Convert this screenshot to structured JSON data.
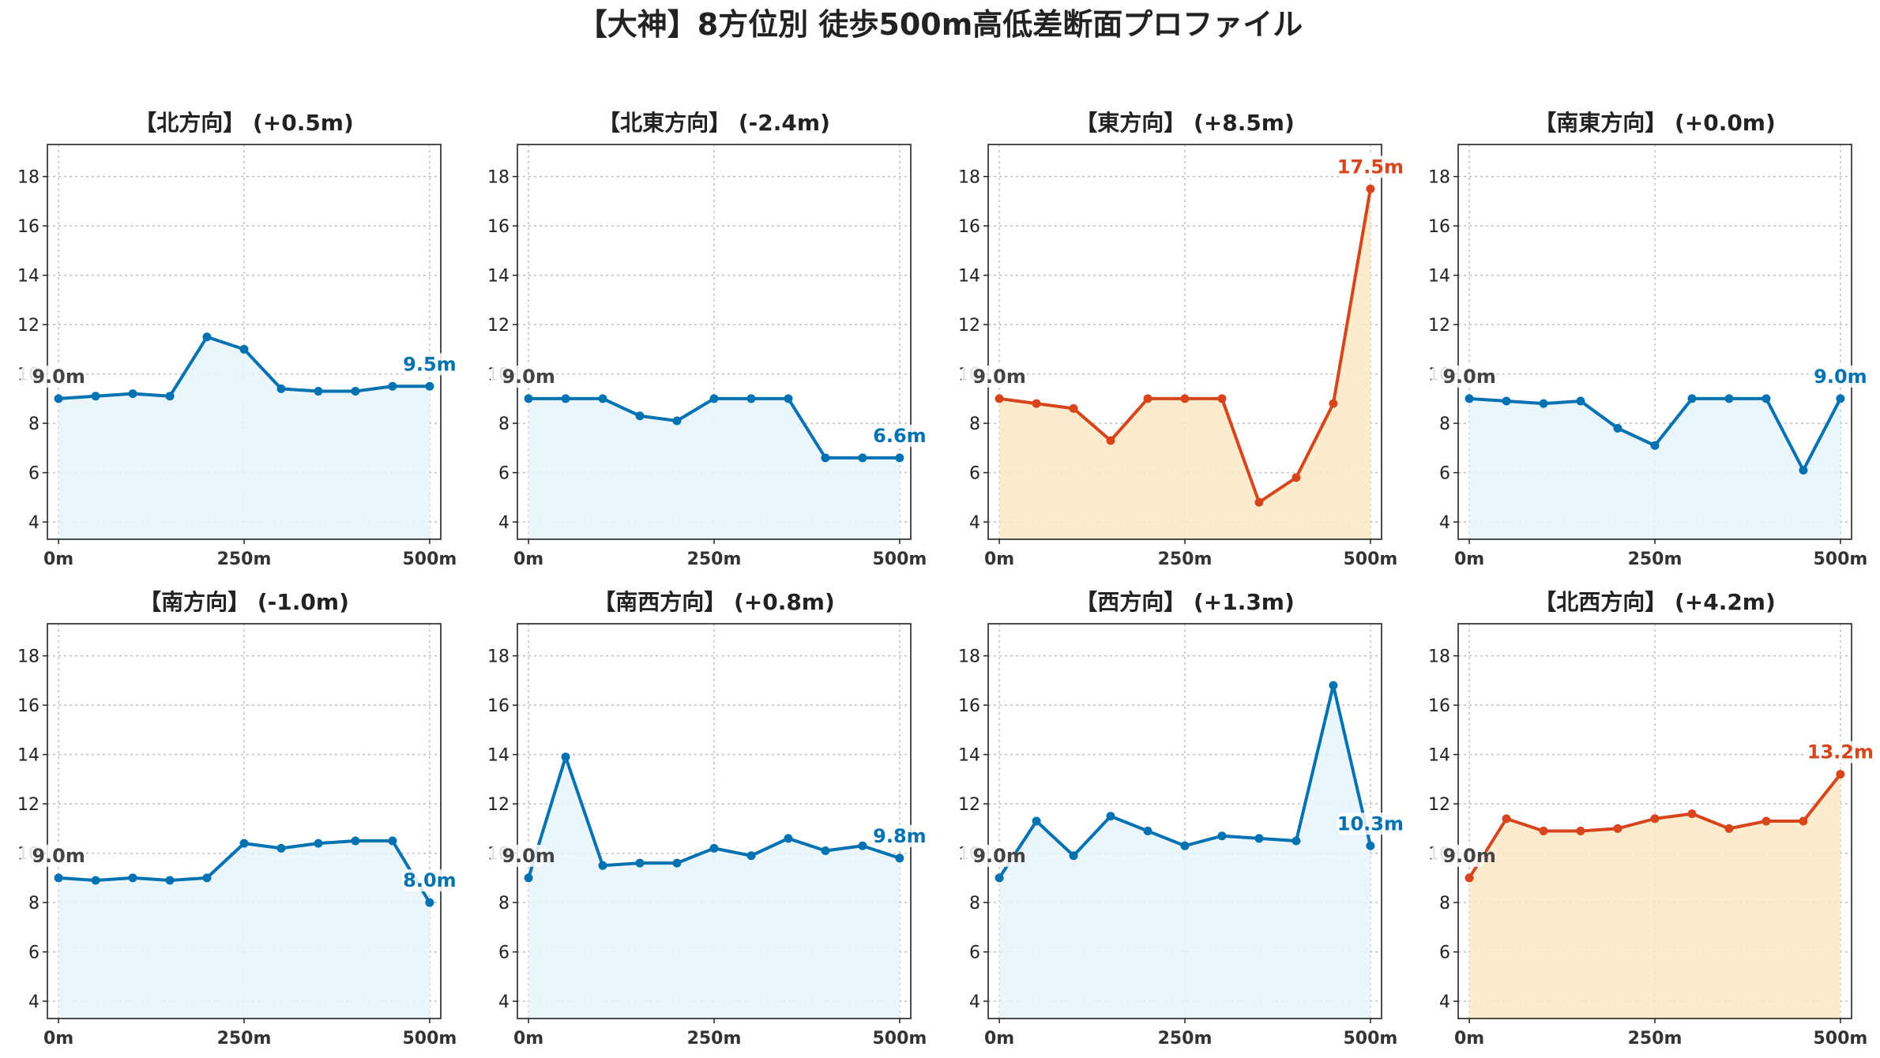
{
  "title": "【大神】8方位別 徒歩500m高低差断面プロファイル",
  "colors": {
    "flat_line": "#0072b2",
    "flat_fill": "#e6f4fb",
    "rise_line": "#d8441c",
    "rise_fill": "#fde8c6",
    "start_label": "#444444"
  },
  "chart_data": [
    {
      "type": "line",
      "title": "【北方向】 (+0.5m)",
      "x": [
        0,
        50,
        100,
        150,
        200,
        250,
        300,
        350,
        400,
        450,
        500
      ],
      "y": [
        9.0,
        9.1,
        9.2,
        9.1,
        11.5,
        11.0,
        9.4,
        9.3,
        9.3,
        9.5,
        9.5
      ],
      "x_tick_labels": [
        "0m",
        "250m",
        "500m"
      ],
      "y_ticks": [
        4,
        6,
        8,
        10,
        12,
        14,
        16,
        18
      ],
      "ylim": [
        3.3,
        19.3
      ],
      "xlim": [
        -15,
        515
      ],
      "start_label": "9.0m",
      "end_label": "9.5m",
      "style": "flat",
      "grid": true
    },
    {
      "type": "line",
      "title": "【北東方向】 (-2.4m)",
      "x": [
        0,
        50,
        100,
        150,
        200,
        250,
        300,
        350,
        400,
        450,
        500
      ],
      "y": [
        9.0,
        9.0,
        9.0,
        8.3,
        8.1,
        9.0,
        9.0,
        9.0,
        6.6,
        6.6,
        6.6
      ],
      "x_tick_labels": [
        "0m",
        "250m",
        "500m"
      ],
      "y_ticks": [
        4,
        6,
        8,
        10,
        12,
        14,
        16,
        18
      ],
      "ylim": [
        3.3,
        19.3
      ],
      "xlim": [
        -15,
        515
      ],
      "start_label": "9.0m",
      "end_label": "6.6m",
      "style": "flat",
      "grid": true
    },
    {
      "type": "line",
      "title": "【東方向】 (+8.5m)",
      "x": [
        0,
        50,
        100,
        150,
        200,
        250,
        300,
        350,
        400,
        450,
        500
      ],
      "y": [
        9.0,
        8.8,
        8.6,
        7.3,
        9.0,
        9.0,
        9.0,
        4.8,
        5.8,
        8.8,
        17.5
      ],
      "x_tick_labels": [
        "0m",
        "250m",
        "500m"
      ],
      "y_ticks": [
        4,
        6,
        8,
        10,
        12,
        14,
        16,
        18
      ],
      "ylim": [
        3.3,
        19.3
      ],
      "xlim": [
        -15,
        515
      ],
      "start_label": "9.0m",
      "end_label": "17.5m",
      "style": "rise",
      "grid": true
    },
    {
      "type": "line",
      "title": "【南東方向】 (+0.0m)",
      "x": [
        0,
        50,
        100,
        150,
        200,
        250,
        300,
        350,
        400,
        450,
        500
      ],
      "y": [
        9.0,
        8.9,
        8.8,
        8.9,
        7.8,
        7.1,
        9.0,
        9.0,
        9.0,
        6.1,
        9.0
      ],
      "x_tick_labels": [
        "0m",
        "250m",
        "500m"
      ],
      "y_ticks": [
        4,
        6,
        8,
        10,
        12,
        14,
        16,
        18
      ],
      "ylim": [
        3.3,
        19.3
      ],
      "xlim": [
        -15,
        515
      ],
      "start_label": "9.0m",
      "end_label": "9.0m",
      "style": "flat",
      "grid": true
    },
    {
      "type": "line",
      "title": "【南方向】 (-1.0m)",
      "x": [
        0,
        50,
        100,
        150,
        200,
        250,
        300,
        350,
        400,
        450,
        500
      ],
      "y": [
        9.0,
        8.9,
        9.0,
        8.9,
        9.0,
        10.4,
        10.2,
        10.4,
        10.5,
        10.5,
        8.0
      ],
      "x_tick_labels": [
        "0m",
        "250m",
        "500m"
      ],
      "y_ticks": [
        4,
        6,
        8,
        10,
        12,
        14,
        16,
        18
      ],
      "ylim": [
        3.3,
        19.3
      ],
      "xlim": [
        -15,
        515
      ],
      "start_label": "9.0m",
      "end_label": "8.0m",
      "style": "flat",
      "grid": true
    },
    {
      "type": "line",
      "title": "【南西方向】 (+0.8m)",
      "x": [
        0,
        50,
        100,
        150,
        200,
        250,
        300,
        350,
        400,
        450,
        500
      ],
      "y": [
        9.0,
        13.9,
        9.5,
        9.6,
        9.6,
        10.2,
        9.9,
        10.6,
        10.1,
        10.3,
        9.8
      ],
      "x_tick_labels": [
        "0m",
        "250m",
        "500m"
      ],
      "y_ticks": [
        4,
        6,
        8,
        10,
        12,
        14,
        16,
        18
      ],
      "ylim": [
        3.3,
        19.3
      ],
      "xlim": [
        -15,
        515
      ],
      "start_label": "9.0m",
      "end_label": "9.8m",
      "style": "flat",
      "grid": true
    },
    {
      "type": "line",
      "title": "【西方向】 (+1.3m)",
      "x": [
        0,
        50,
        100,
        150,
        200,
        250,
        300,
        350,
        400,
        450,
        500
      ],
      "y": [
        9.0,
        11.3,
        9.9,
        11.5,
        10.9,
        10.3,
        10.7,
        10.6,
        10.5,
        16.8,
        10.3
      ],
      "x_tick_labels": [
        "0m",
        "250m",
        "500m"
      ],
      "y_ticks": [
        4,
        6,
        8,
        10,
        12,
        14,
        16,
        18
      ],
      "ylim": [
        3.3,
        19.3
      ],
      "xlim": [
        -15,
        515
      ],
      "start_label": "9.0m",
      "end_label": "10.3m",
      "style": "flat",
      "grid": true
    },
    {
      "type": "line",
      "title": "【北西方向】 (+4.2m)",
      "x": [
        0,
        50,
        100,
        150,
        200,
        250,
        300,
        350,
        400,
        450,
        500
      ],
      "y": [
        9.0,
        11.4,
        10.9,
        10.9,
        11.0,
        11.4,
        11.6,
        11.0,
        11.3,
        11.3,
        13.2
      ],
      "x_tick_labels": [
        "0m",
        "250m",
        "500m"
      ],
      "y_ticks": [
        4,
        6,
        8,
        10,
        12,
        14,
        16,
        18
      ],
      "ylim": [
        3.3,
        19.3
      ],
      "xlim": [
        -15,
        515
      ],
      "start_label": "9.0m",
      "end_label": "13.2m",
      "style": "rise",
      "grid": true
    }
  ]
}
